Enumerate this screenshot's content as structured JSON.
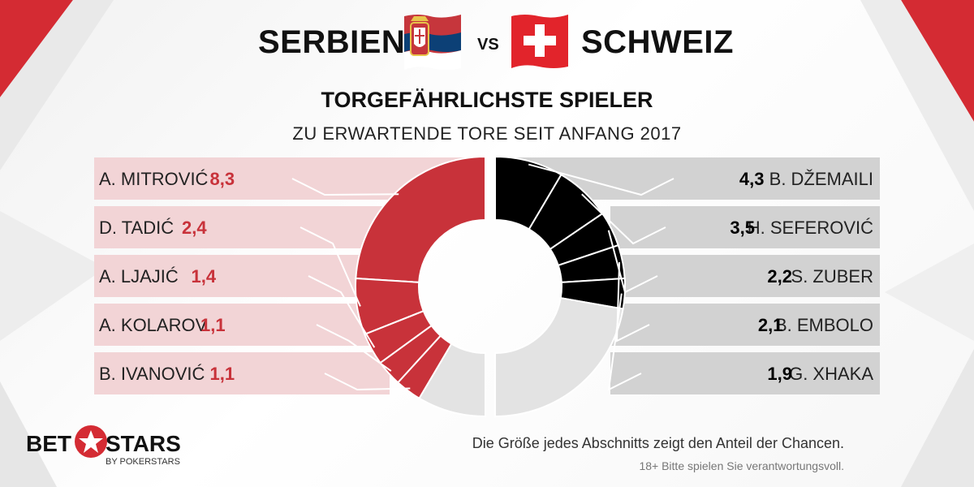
{
  "header": {
    "team_a": "SERBIEN",
    "vs": "VS",
    "team_b": "SCHWEIZ",
    "subtitle": "TORGEFÄHRLICHSTE SPIELER",
    "subtitle2": "ZU ERWARTENDE TORE SEIT ANFANG 2017"
  },
  "colors": {
    "serbia_accent": "#c8323a",
    "serbia_panel": "#f2d4d6",
    "swiss_accent": "#000000",
    "swiss_panel": "#d2d2d2",
    "remainder": "#e3e3e3"
  },
  "chart_data": [
    {
      "type": "pie",
      "team": "SERBIEN",
      "labels": [
        "A. MITROVIĆ",
        "D. TADIĆ",
        "A. LJAJIĆ",
        "A. KOLAROV",
        "B. IVANOVIĆ"
      ],
      "value_labels": [
        "8,3",
        "2,4",
        "1,4",
        "1,1",
        "1,1"
      ],
      "values": [
        8.3,
        2.4,
        1.4,
        1.1,
        1.1
      ],
      "share_of_half_circle": [
        0.48,
        0.14,
        0.08,
        0.065,
        0.065,
        0.17
      ]
    },
    {
      "type": "pie",
      "team": "SCHWEIZ",
      "labels": [
        "B. DŽEMAILI",
        "H. SEFEROVIĆ",
        "S. ZUBER",
        "B. EMBOLO",
        "G. XHAKA"
      ],
      "value_labels": [
        "4,3",
        "3,5",
        "2,2",
        "2,1",
        "1,9"
      ],
      "values": [
        4.3,
        3.5,
        2.2,
        2.1,
        1.9
      ],
      "share_of_half_circle": [
        0.17,
        0.14,
        0.087,
        0.083,
        0.075,
        0.445
      ]
    }
  ],
  "footer": {
    "note": "Die Größe jedes Abschnitts zeigt den Anteil der Chancen.",
    "disclaimer": "18+ Bitte spielen Sie verantwortungsvoll.",
    "logo_left": "BET",
    "logo_right": "STARS",
    "logo_sub": "BY POKERSTARS"
  }
}
